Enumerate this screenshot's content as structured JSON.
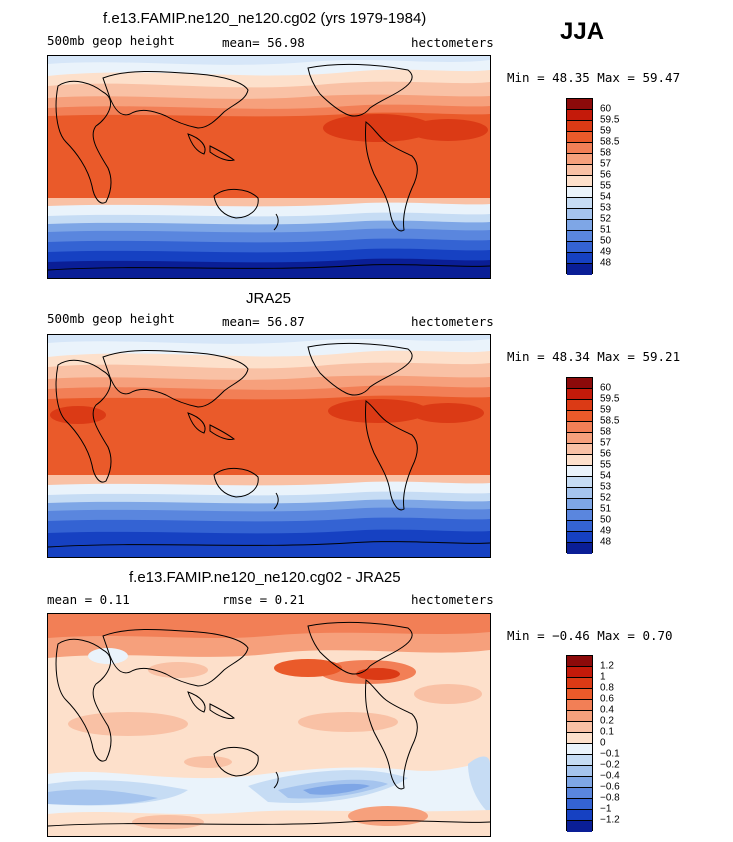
{
  "season": "JJA",
  "panels": [
    {
      "title": "f.e13.FAMIP.ne120_ne120.cg02 (yrs 1979-1984)",
      "left_text": "500mb geop height",
      "mid_text": "mean=  56.98",
      "right_text": "hectometers",
      "minmax": "Min =  48.35 Max =  59.47",
      "colors": [
        "#8c0a0a",
        "#c41a0a",
        "#db3a15",
        "#ea5a2a",
        "#f27f56",
        "#f6a07c",
        "#f9c1a5",
        "#fde0cb",
        "#eaf3fb",
        "#c6dcf4",
        "#a5c4ee",
        "#7ea6e6",
        "#5a86de",
        "#3463d3",
        "#1641c2",
        "#0a1e96"
      ],
      "labels": [
        "60",
        "59.5",
        "59",
        "58.5",
        "58",
        "57",
        "56",
        "55",
        "54",
        "53",
        "52",
        "51",
        "50",
        "49",
        "48"
      ]
    },
    {
      "title": "JRA25",
      "left_text": "500mb geop height",
      "mid_text": "mean=  56.87",
      "right_text": "hectometers",
      "minmax": "Min =  48.34 Max =  59.21",
      "colors": [
        "#8c0a0a",
        "#c41a0a",
        "#db3a15",
        "#ea5a2a",
        "#f27f56",
        "#f6a07c",
        "#f9c1a5",
        "#fde0cb",
        "#eaf3fb",
        "#c6dcf4",
        "#a5c4ee",
        "#7ea6e6",
        "#5a86de",
        "#3463d3",
        "#1641c2",
        "#0a1e96"
      ],
      "labels": [
        "60",
        "59.5",
        "59",
        "58.5",
        "58",
        "57",
        "56",
        "55",
        "54",
        "53",
        "52",
        "51",
        "50",
        "49",
        "48"
      ]
    },
    {
      "title": "f.e13.FAMIP.ne120_ne120.cg02 - JRA25",
      "left_text": "mean =    0.11",
      "mid_text": "rmse =    0.21",
      "right_text": "hectometers",
      "minmax": "Min =  −0.46 Max =    0.70",
      "colors": [
        "#8c0a0a",
        "#c41a0a",
        "#db3a15",
        "#ea5a2a",
        "#f27f56",
        "#f6a07c",
        "#f9c1a5",
        "#fde0cb",
        "#eaf3fb",
        "#c6dcf4",
        "#a5c4ee",
        "#7ea6e6",
        "#5a86de",
        "#3463d3",
        "#1641c2",
        "#0a1e96"
      ],
      "labels": [
        "1.2",
        "1",
        "0.8",
        "0.6",
        "0.4",
        "0.2",
        "0.1",
        "0",
        "−0.1",
        "−0.2",
        "−0.4",
        "−0.6",
        "−0.8",
        "−1",
        "−1.2"
      ]
    }
  ]
}
